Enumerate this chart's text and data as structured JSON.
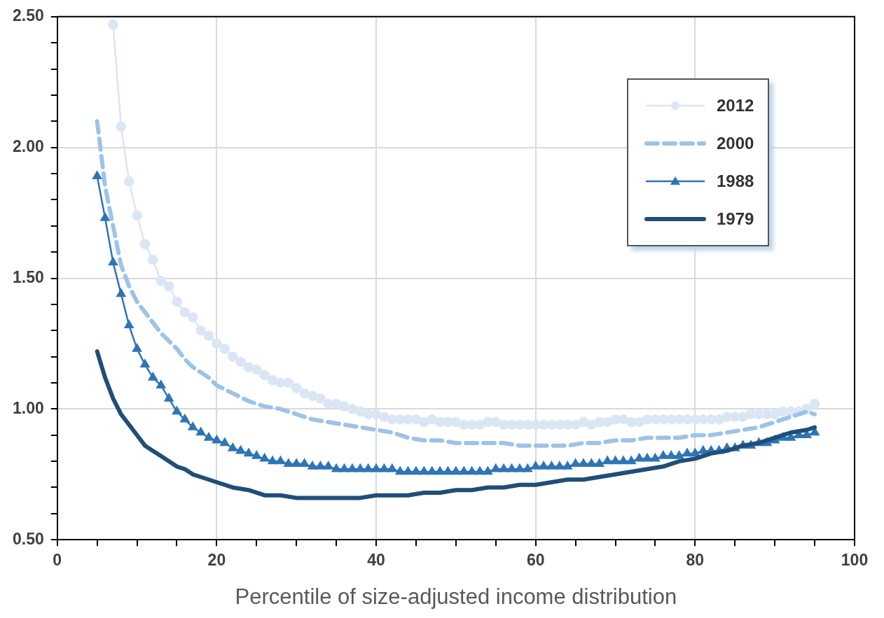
{
  "chart_data": {
    "type": "line",
    "xlabel": "Percentile of size-adjusted income distribution",
    "xlim": [
      0,
      100
    ],
    "xticks": [
      0,
      {
        "value": 5,
        "label": null
      },
      {
        "value": 10,
        "label": null
      },
      {
        "value": 15,
        "label": null
      },
      20,
      {
        "value": 25,
        "label": null
      },
      {
        "value": 30,
        "label": null
      },
      {
        "value": 35,
        "label": null
      },
      40,
      {
        "value": 45,
        "label": null
      },
      {
        "value": 50,
        "label": null
      },
      {
        "value": 55,
        "label": null
      },
      60,
      {
        "value": 65,
        "label": null
      },
      {
        "value": 70,
        "label": null
      },
      {
        "value": 75,
        "label": null
      },
      80,
      {
        "value": 85,
        "label": null
      },
      {
        "value": 90,
        "label": null
      },
      {
        "value": 95,
        "label": null
      },
      100
    ],
    "ylim": [
      0.5,
      2.5
    ],
    "yticks": [
      {
        "value": 0.5,
        "label": "0.50"
      },
      {
        "value": 0.6,
        "label": null
      },
      {
        "value": 0.7,
        "label": null
      },
      {
        "value": 0.8,
        "label": null
      },
      {
        "value": 0.9,
        "label": null
      },
      {
        "value": 1,
        "label": "1.00"
      },
      {
        "value": 1.1,
        "label": null
      },
      {
        "value": 1.2,
        "label": null
      },
      {
        "value": 1.3,
        "label": null
      },
      {
        "value": 1.4,
        "label": null
      },
      {
        "value": 1.5,
        "label": "1.50"
      },
      {
        "value": 1.6,
        "label": null
      },
      {
        "value": 1.7,
        "label": null
      },
      {
        "value": 1.8,
        "label": null
      },
      {
        "value": 1.9,
        "label": null
      },
      {
        "value": 2,
        "label": "2.00"
      },
      {
        "value": 2.1,
        "label": null
      },
      {
        "value": 2.2,
        "label": null
      },
      {
        "value": 2.3,
        "label": null
      },
      {
        "value": 2.4,
        "label": null
      },
      {
        "value": 2.5,
        "label": "2.50"
      }
    ],
    "grid": true,
    "legend": "top right",
    "series": [
      {
        "name": "2012",
        "color": "#dae6f4",
        "marker": "circle",
        "line_style": "solid",
        "x": [
          7,
          8,
          9,
          10,
          11,
          12,
          13,
          14,
          15,
          16,
          17,
          18,
          19,
          20,
          21,
          22,
          23,
          24,
          25,
          26,
          27,
          28,
          29,
          30,
          31,
          32,
          33,
          34,
          35,
          36,
          37,
          38,
          39,
          40,
          41,
          42,
          43,
          44,
          45,
          46,
          47,
          48,
          49,
          50,
          51,
          52,
          53,
          54,
          55,
          56,
          57,
          58,
          59,
          60,
          61,
          62,
          63,
          64,
          65,
          66,
          67,
          68,
          69,
          70,
          71,
          72,
          73,
          74,
          75,
          76,
          77,
          78,
          79,
          80,
          81,
          82,
          83,
          84,
          85,
          86,
          87,
          88,
          89,
          90,
          91,
          92,
          93,
          94,
          95
        ],
        "values": [
          2.47,
          2.08,
          1.87,
          1.74,
          1.63,
          1.57,
          1.49,
          1.47,
          1.41,
          1.37,
          1.35,
          1.3,
          1.28,
          1.25,
          1.23,
          1.2,
          1.18,
          1.16,
          1.15,
          1.13,
          1.11,
          1.1,
          1.1,
          1.08,
          1.06,
          1.05,
          1.04,
          1.02,
          1.02,
          1.01,
          1.0,
          0.99,
          0.98,
          0.98,
          0.97,
          0.96,
          0.96,
          0.96,
          0.96,
          0.95,
          0.96,
          0.95,
          0.95,
          0.95,
          0.94,
          0.94,
          0.94,
          0.95,
          0.95,
          0.94,
          0.94,
          0.94,
          0.94,
          0.94,
          0.94,
          0.94,
          0.94,
          0.94,
          0.94,
          0.95,
          0.94,
          0.95,
          0.95,
          0.96,
          0.96,
          0.95,
          0.95,
          0.96,
          0.96,
          0.96,
          0.96,
          0.96,
          0.96,
          0.96,
          0.96,
          0.96,
          0.96,
          0.97,
          0.97,
          0.97,
          0.98,
          0.98,
          0.98,
          0.98,
          0.99,
          0.99,
          0.99,
          1.0,
          1.02
        ]
      },
      {
        "name": "2000",
        "color": "#9dc3e6",
        "marker": "none",
        "line_style": "dashed",
        "x": [
          5,
          6,
          7,
          8,
          9,
          10,
          11,
          12,
          13,
          14,
          15,
          16,
          17,
          18,
          19,
          20,
          22,
          24,
          26,
          28,
          30,
          32,
          34,
          36,
          38,
          40,
          42,
          44,
          46,
          48,
          50,
          52,
          54,
          56,
          58,
          60,
          62,
          64,
          66,
          68,
          70,
          72,
          74,
          76,
          78,
          80,
          82,
          84,
          86,
          88,
          90,
          92,
          94,
          95
        ],
        "values": [
          2.1,
          1.85,
          1.7,
          1.55,
          1.47,
          1.41,
          1.37,
          1.33,
          1.29,
          1.26,
          1.23,
          1.19,
          1.16,
          1.14,
          1.12,
          1.09,
          1.06,
          1.03,
          1.01,
          1.0,
          0.98,
          0.96,
          0.95,
          0.94,
          0.93,
          0.92,
          0.91,
          0.89,
          0.88,
          0.88,
          0.87,
          0.87,
          0.87,
          0.87,
          0.86,
          0.86,
          0.86,
          0.86,
          0.87,
          0.87,
          0.88,
          0.88,
          0.89,
          0.89,
          0.89,
          0.9,
          0.9,
          0.91,
          0.92,
          0.93,
          0.95,
          0.97,
          0.99,
          0.98
        ]
      },
      {
        "name": "1988",
        "color": "#2e75b6",
        "marker": "triangle",
        "line_style": "solid",
        "x": [
          5,
          6,
          7,
          8,
          9,
          10,
          11,
          12,
          13,
          14,
          15,
          16,
          17,
          18,
          19,
          20,
          21,
          22,
          23,
          24,
          25,
          26,
          27,
          28,
          29,
          30,
          31,
          32,
          33,
          34,
          35,
          36,
          37,
          38,
          39,
          40,
          41,
          42,
          43,
          44,
          45,
          46,
          47,
          48,
          49,
          50,
          51,
          52,
          53,
          54,
          55,
          56,
          57,
          58,
          59,
          60,
          61,
          62,
          63,
          64,
          65,
          66,
          67,
          68,
          69,
          70,
          71,
          72,
          73,
          74,
          75,
          76,
          77,
          78,
          79,
          80,
          81,
          82,
          83,
          84,
          85,
          86,
          87,
          88,
          89,
          90,
          91,
          92,
          93,
          94,
          95
        ],
        "values": [
          1.89,
          1.73,
          1.56,
          1.44,
          1.32,
          1.23,
          1.17,
          1.12,
          1.09,
          1.04,
          0.99,
          0.96,
          0.93,
          0.91,
          0.89,
          0.88,
          0.87,
          0.85,
          0.84,
          0.83,
          0.82,
          0.81,
          0.8,
          0.8,
          0.79,
          0.79,
          0.79,
          0.78,
          0.78,
          0.78,
          0.77,
          0.77,
          0.77,
          0.77,
          0.77,
          0.77,
          0.77,
          0.77,
          0.76,
          0.76,
          0.76,
          0.76,
          0.76,
          0.76,
          0.76,
          0.76,
          0.76,
          0.76,
          0.76,
          0.76,
          0.77,
          0.77,
          0.77,
          0.77,
          0.77,
          0.78,
          0.78,
          0.78,
          0.78,
          0.78,
          0.79,
          0.79,
          0.79,
          0.79,
          0.8,
          0.8,
          0.8,
          0.8,
          0.81,
          0.81,
          0.81,
          0.82,
          0.82,
          0.82,
          0.83,
          0.83,
          0.84,
          0.84,
          0.84,
          0.85,
          0.85,
          0.86,
          0.86,
          0.87,
          0.87,
          0.88,
          0.89,
          0.89,
          0.9,
          0.9,
          0.91
        ]
      },
      {
        "name": "1979",
        "color": "#1f4e79",
        "marker": "none",
        "line_style": "solid",
        "x": [
          5,
          6,
          7,
          8,
          9,
          10,
          11,
          12,
          13,
          14,
          15,
          16,
          17,
          18,
          19,
          20,
          22,
          24,
          26,
          28,
          30,
          32,
          34,
          36,
          38,
          40,
          42,
          44,
          46,
          48,
          50,
          52,
          54,
          56,
          58,
          60,
          62,
          64,
          66,
          68,
          70,
          72,
          74,
          76,
          78,
          80,
          82,
          84,
          86,
          88,
          90,
          92,
          94,
          95
        ],
        "values": [
          1.22,
          1.12,
          1.04,
          0.98,
          0.94,
          0.9,
          0.86,
          0.84,
          0.82,
          0.8,
          0.78,
          0.77,
          0.75,
          0.74,
          0.73,
          0.72,
          0.7,
          0.69,
          0.67,
          0.67,
          0.66,
          0.66,
          0.66,
          0.66,
          0.66,
          0.67,
          0.67,
          0.67,
          0.68,
          0.68,
          0.69,
          0.69,
          0.7,
          0.7,
          0.71,
          0.71,
          0.72,
          0.73,
          0.73,
          0.74,
          0.75,
          0.76,
          0.77,
          0.78,
          0.8,
          0.81,
          0.83,
          0.84,
          0.86,
          0.87,
          0.89,
          0.91,
          0.92,
          0.93
        ]
      }
    ]
  }
}
